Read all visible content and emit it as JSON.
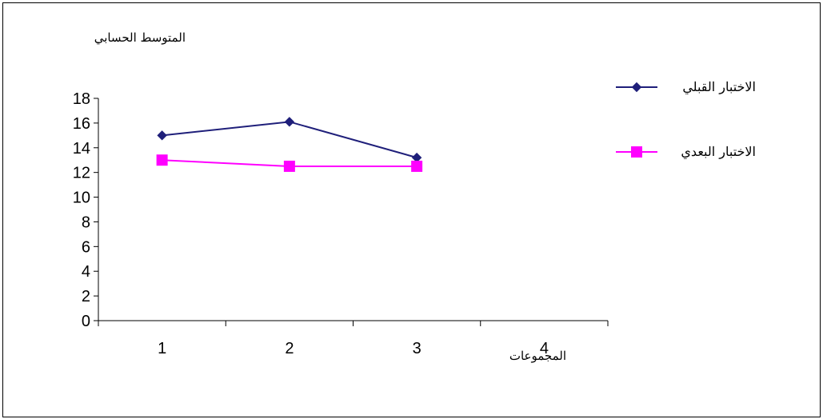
{
  "chart_data": {
    "type": "line",
    "ylabel": "المتوسط الحسابي",
    "xlabel": "المجموعات",
    "categories": [
      "1",
      "2",
      "3",
      "4"
    ],
    "ylim": [
      0,
      18
    ],
    "yticks": [
      0,
      2,
      4,
      6,
      8,
      10,
      12,
      14,
      16,
      18
    ],
    "grid": false,
    "legend_position": "right",
    "series": [
      {
        "name": "الاختبار القبلي",
        "values": [
          15,
          16.1,
          13.2,
          null
        ],
        "color": "#1F1F7A",
        "marker": "diamond"
      },
      {
        "name": "الاختبار البعدي",
        "values": [
          13,
          12.5,
          12.5,
          null
        ],
        "color": "#FF00FF",
        "marker": "square"
      }
    ]
  }
}
